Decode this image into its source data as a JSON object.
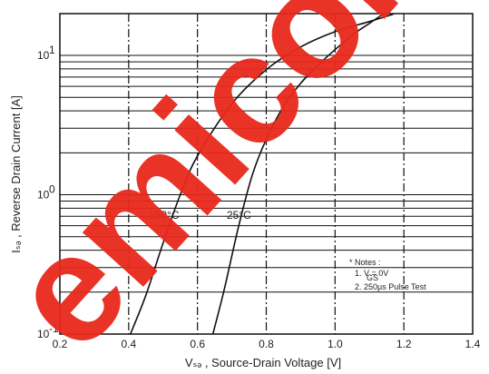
{
  "chart_data": {
    "type": "line",
    "xlabel": "Vₛₔ , Source-Drain Voltage [V]",
    "ylabel": "Iₛₔ , Reverse Drain Current [A]",
    "xlim": [
      0.2,
      1.4
    ],
    "ylim_log10": [
      -1,
      1.3
    ],
    "y_scale": "log",
    "x_ticks": [
      "0.2",
      "0.4",
      "0.6",
      "0.8",
      "1.0",
      "1.2",
      "1.4"
    ],
    "y_ticks": [
      {
        "base": "10",
        "exp": "1",
        "value": 10
      },
      {
        "base": "10",
        "exp": "0",
        "value": 1
      },
      {
        "base": "10",
        "exp": "-1",
        "value": 0.1
      }
    ],
    "grid": true,
    "series": [
      {
        "name": "150°C",
        "x": [
          0.405,
          0.45,
          0.5,
          0.55,
          0.6,
          0.7,
          0.8,
          0.9,
          1.0,
          1.1,
          1.17
        ],
        "y": [
          0.1,
          0.19,
          0.45,
          1.0,
          1.9,
          4.5,
          7.9,
          11.5,
          14.8,
          17.5,
          19.8
        ]
      },
      {
        "name": "25°C",
        "x": [
          0.645,
          0.68,
          0.72,
          0.76,
          0.8,
          0.85,
          0.9,
          0.95,
          1.0,
          1.05,
          1.1,
          1.14
        ],
        "y": [
          0.1,
          0.22,
          0.6,
          1.4,
          2.5,
          4.3,
          6.3,
          8.5,
          11.0,
          14.0,
          17.0,
          19.8
        ]
      }
    ],
    "annotations": {
      "notes_title": "* Notes :",
      "note_1": "1. V   = 0V",
      "note_1_sub": "GS",
      "note_2": "2. 250μs Pulse Test"
    }
  },
  "watermark": "emicon"
}
